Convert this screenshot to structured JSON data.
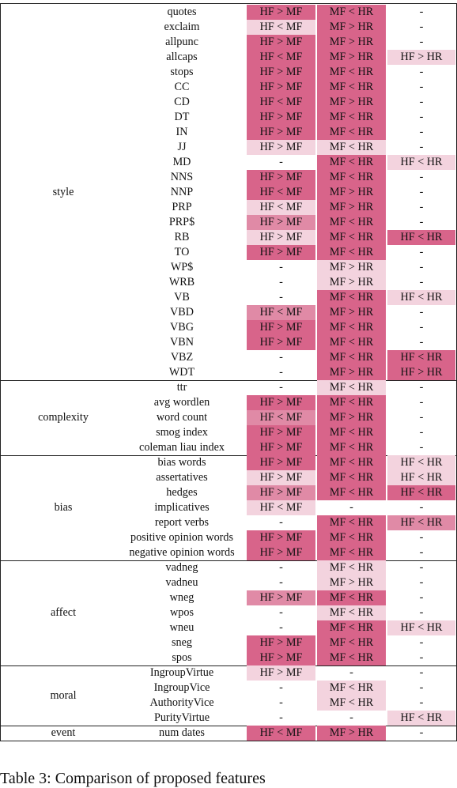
{
  "groups": [
    {
      "name": "style",
      "rows": [
        {
          "feature": "quotes",
          "c1": "HF > MF",
          "c2": "MF < HR",
          "c3": "-",
          "s1": 3,
          "s2": 3,
          "s3": 0
        },
        {
          "feature": "exclaim",
          "c1": "HF < MF",
          "c2": "MF > HR",
          "c3": "-",
          "s1": 1,
          "s2": 3,
          "s3": 0
        },
        {
          "feature": "allpunc",
          "c1": "HF > MF",
          "c2": "MF > HR",
          "c3": "-",
          "s1": 3,
          "s2": 3,
          "s3": 0
        },
        {
          "feature": "allcaps",
          "c1": "HF < MF",
          "c2": "MF > HR",
          "c3": "HF > HR",
          "s1": 3,
          "s2": 3,
          "s3": 1
        },
        {
          "feature": "stops",
          "c1": "HF > MF",
          "c2": "MF < HR",
          "c3": "-",
          "s1": 3,
          "s2": 3,
          "s3": 0
        },
        {
          "feature": "CC",
          "c1": "HF > MF",
          "c2": "MF < HR",
          "c3": "-",
          "s1": 3,
          "s2": 3,
          "s3": 0
        },
        {
          "feature": "CD",
          "c1": "HF < MF",
          "c2": "MF > HR",
          "c3": "-",
          "s1": 3,
          "s2": 3,
          "s3": 0
        },
        {
          "feature": "DT",
          "c1": "HF > MF",
          "c2": "MF < HR",
          "c3": "-",
          "s1": 3,
          "s2": 3,
          "s3": 0
        },
        {
          "feature": "IN",
          "c1": "HF > MF",
          "c2": "MF < HR",
          "c3": "-",
          "s1": 3,
          "s2": 3,
          "s3": 0
        },
        {
          "feature": "JJ",
          "c1": "HF > MF",
          "c2": "MF < HR",
          "c3": "-",
          "s1": 1,
          "s2": 1,
          "s3": 0
        },
        {
          "feature": "MD",
          "c1": "-",
          "c2": "MF < HR",
          "c3": "HF < HR",
          "s1": 0,
          "s2": 3,
          "s3": 1
        },
        {
          "feature": "NNS",
          "c1": "HF > MF",
          "c2": "MF < HR",
          "c3": "-",
          "s1": 3,
          "s2": 3,
          "s3": 0
        },
        {
          "feature": "NNP",
          "c1": "HF < MF",
          "c2": "MF > HR",
          "c3": "-",
          "s1": 3,
          "s2": 3,
          "s3": 0
        },
        {
          "feature": "PRP",
          "c1": "HF < MF",
          "c2": "MF > HR",
          "c3": "-",
          "s1": 1,
          "s2": 3,
          "s3": 0
        },
        {
          "feature": "PRP$",
          "c1": "HF > MF",
          "c2": "MF < HR",
          "c3": "-",
          "s1": 2,
          "s2": 3,
          "s3": 0
        },
        {
          "feature": "RB",
          "c1": "HF > MF",
          "c2": "MF < HR",
          "c3": "HF < HR",
          "s1": 1,
          "s2": 3,
          "s3": 3
        },
        {
          "feature": "TO",
          "c1": "HF > MF",
          "c2": "MF < HR",
          "c3": "-",
          "s1": 3,
          "s2": 3,
          "s3": 0
        },
        {
          "feature": "WP$",
          "c1": "-",
          "c2": "MF > HR",
          "c3": "-",
          "s1": 0,
          "s2": 1,
          "s3": 0
        },
        {
          "feature": "WRB",
          "c1": "-",
          "c2": "MF > HR",
          "c3": "-",
          "s1": 0,
          "s2": 1,
          "s3": 0
        },
        {
          "feature": "VB",
          "c1": "-",
          "c2": "MF < HR",
          "c3": "HF < HR",
          "s1": 0,
          "s2": 3,
          "s3": 1
        },
        {
          "feature": "VBD",
          "c1": "HF < MF",
          "c2": "MF > HR",
          "c3": "-",
          "s1": 2,
          "s2": 3,
          "s3": 0
        },
        {
          "feature": "VBG",
          "c1": "HF > MF",
          "c2": "MF < HR",
          "c3": "-",
          "s1": 3,
          "s2": 3,
          "s3": 0
        },
        {
          "feature": "VBN",
          "c1": "HF > MF",
          "c2": "MF < HR",
          "c3": "-",
          "s1": 3,
          "s2": 3,
          "s3": 0
        },
        {
          "feature": "VBZ",
          "c1": "-",
          "c2": "MF < HR",
          "c3": "HF < HR",
          "s1": 0,
          "s2": 3,
          "s3": 3
        },
        {
          "feature": "WDT",
          "c1": "-",
          "c2": "MF > HR",
          "c3": "HF > HR",
          "s1": 0,
          "s2": 3,
          "s3": 3
        }
      ]
    },
    {
      "name": "complexity",
      "rows": [
        {
          "feature": "ttr",
          "c1": "-",
          "c2": "MF < HR",
          "c3": "-",
          "s1": 0,
          "s2": 1,
          "s3": 0
        },
        {
          "feature": "avg wordlen",
          "c1": "HF > MF",
          "c2": "MF < HR",
          "c3": "-",
          "s1": 3,
          "s2": 3,
          "s3": 0
        },
        {
          "feature": "word count",
          "c1": "HF < MF",
          "c2": "MF > HR",
          "c3": "-",
          "s1": 2,
          "s2": 3,
          "s3": 0
        },
        {
          "feature": "smog index",
          "c1": "HF > MF",
          "c2": "MF < HR",
          "c3": "-",
          "s1": 3,
          "s2": 3,
          "s3": 0
        },
        {
          "feature": "coleman liau index",
          "c1": "HF > MF",
          "c2": "MF < HR",
          "c3": "-",
          "s1": 3,
          "s2": 3,
          "s3": 0
        }
      ]
    },
    {
      "name": "bias",
      "rows": [
        {
          "feature": "bias words",
          "c1": "HF > MF",
          "c2": "MF < HR",
          "c3": "HF < HR",
          "s1": 3,
          "s2": 3,
          "s3": 1
        },
        {
          "feature": "assertatives",
          "c1": "HF > MF",
          "c2": "MF < HR",
          "c3": "HF < HR",
          "s1": 1,
          "s2": 3,
          "s3": 1
        },
        {
          "feature": "hedges",
          "c1": "HF > MF",
          "c2": "MF < HR",
          "c3": "HF < HR",
          "s1": 2,
          "s2": 3,
          "s3": 3
        },
        {
          "feature": "implicatives",
          "c1": "HF < MF",
          "c2": "-",
          "c3": "-",
          "s1": 1,
          "s2": 0,
          "s3": 0
        },
        {
          "feature": "report verbs",
          "c1": "-",
          "c2": "MF < HR",
          "c3": "HF < HR",
          "s1": 0,
          "s2": 3,
          "s3": 2
        },
        {
          "feature": "positive opinion words",
          "c1": "HF > MF",
          "c2": "MF < HR",
          "c3": "-",
          "s1": 3,
          "s2": 3,
          "s3": 0
        },
        {
          "feature": "negative opinion words",
          "c1": "HF > MF",
          "c2": "MF < HR",
          "c3": "-",
          "s1": 3,
          "s2": 3,
          "s3": 0
        }
      ]
    },
    {
      "name": "affect",
      "rows": [
        {
          "feature": "vadneg",
          "c1": "-",
          "c2": "MF < HR",
          "c3": "-",
          "s1": 0,
          "s2": 1,
          "s3": 0
        },
        {
          "feature": "vadneu",
          "c1": "-",
          "c2": "MF > HR",
          "c3": "-",
          "s1": 0,
          "s2": 1,
          "s3": 0
        },
        {
          "feature": "wneg",
          "c1": "HF > MF",
          "c2": "MF < HR",
          "c3": "-",
          "s1": 2,
          "s2": 3,
          "s3": 0
        },
        {
          "feature": "wpos",
          "c1": "-",
          "c2": "MF < HR",
          "c3": "-",
          "s1": 0,
          "s2": 1,
          "s3": 0
        },
        {
          "feature": "wneu",
          "c1": "-",
          "c2": "MF < HR",
          "c3": "HF < HR",
          "s1": 0,
          "s2": 3,
          "s3": 1
        },
        {
          "feature": "sneg",
          "c1": "HF > MF",
          "c2": "MF < HR",
          "c3": "-",
          "s1": 3,
          "s2": 3,
          "s3": 0
        },
        {
          "feature": "spos",
          "c1": "HF > MF",
          "c2": "MF < HR",
          "c3": "-",
          "s1": 3,
          "s2": 3,
          "s3": 0
        }
      ]
    },
    {
      "name": "moral",
      "rows": [
        {
          "feature": "IngroupVirtue",
          "c1": "HF > MF",
          "c2": "-",
          "c3": "-",
          "s1": 1,
          "s2": 0,
          "s3": 0
        },
        {
          "feature": "IngroupVice",
          "c1": "-",
          "c2": "MF < HR",
          "c3": "-",
          "s1": 0,
          "s2": 1,
          "s3": 0
        },
        {
          "feature": "AuthorityVice",
          "c1": "-",
          "c2": "MF < HR",
          "c3": "-",
          "s1": 0,
          "s2": 1,
          "s3": 0
        },
        {
          "feature": "PurityVirtue",
          "c1": "-",
          "c2": "-",
          "c3": "HF < HR",
          "s1": 0,
          "s2": 0,
          "s3": 1
        }
      ]
    },
    {
      "name": "event",
      "rows": [
        {
          "feature": "num dates",
          "c1": "HF < MF",
          "c2": "MF > HR",
          "c3": "-",
          "s1": 3,
          "s2": 3,
          "s3": 0
        }
      ]
    }
  ],
  "shade_colors": [
    "transparent",
    "#f3d3de",
    "#e08aa6",
    "#d8648a"
  ],
  "caption": "Table 3: Comparison of proposed features"
}
